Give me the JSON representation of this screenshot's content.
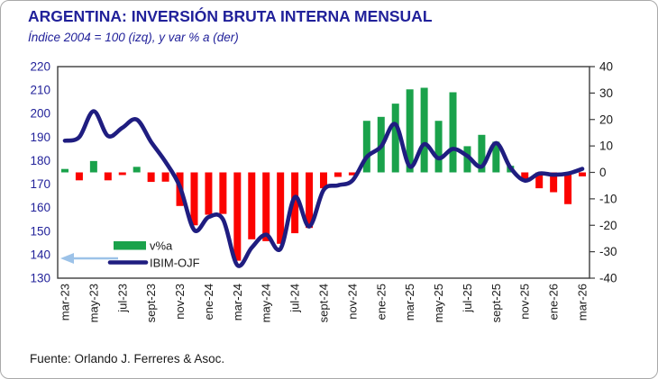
{
  "header": {
    "title": "ARGENTINA: INVERSIÓN BRUTA INTERNA MENSUAL",
    "subtitle": "Índice 2004 = 100 (izq), y var % a (der)"
  },
  "footer": {
    "source": "Fuente: Orlando J. Ferreres & Asoc."
  },
  "legend": {
    "bars_label": "v%a",
    "line_label": "IBIM-OJF",
    "position": "inside-bottom-left"
  },
  "colors": {
    "title_navy": "#21219a",
    "line_navy": "#1f1d80",
    "bar_positive_green": "#1aa24b",
    "bar_negative_red": "#fb0300",
    "axis_text_black": "#1a1a1a",
    "axis_text_navy": "#22229a",
    "plot_border": "#3c3c3c",
    "arrow_light_blue": "#9cc2e8"
  },
  "chart_data": {
    "type": "bar",
    "subtype": "combo-bar-line",
    "n_months": 37,
    "x_tick_labels": [
      "mar-23",
      "may-23",
      "jul-23",
      "sept-23",
      "nov-23",
      "ene-24",
      "mar-24",
      "may-24",
      "jul-24",
      "sept-24",
      "nov-24",
      "ene-25",
      "mar-25",
      "may-25",
      "jul-25",
      "sept-25",
      "nov-25",
      "ene-26",
      "mar-26"
    ],
    "x_tick_every": 2,
    "left_axis": {
      "min": 130,
      "max": 220,
      "step": 10,
      "ticks": [
        220,
        210,
        200,
        190,
        180,
        170,
        160,
        150,
        140,
        130
      ],
      "label": "Índice 2004 = 100"
    },
    "right_axis": {
      "min": -40,
      "max": 40,
      "step": 10,
      "ticks": [
        40,
        30,
        20,
        10,
        0,
        -10,
        -20,
        -30,
        -40
      ],
      "label": "var % a"
    },
    "grid": false,
    "series": [
      {
        "name": "v%a",
        "type": "bar",
        "axis": "right",
        "values": [
          1.3,
          -3,
          4.3,
          -3,
          -1,
          2.1,
          -3.6,
          -3.5,
          -12.7,
          -20,
          -16,
          -15.7,
          -33.4,
          -25.3,
          -26,
          -27,
          -23,
          -21,
          -6,
          -1.7,
          -1.1,
          19.5,
          21,
          26,
          31.4,
          32,
          19.5,
          30.3,
          9.9,
          14.2,
          11.6,
          2.5,
          -3,
          -6,
          -7.5,
          -12,
          -1.5
        ]
      },
      {
        "name": "IBIM-OJF",
        "type": "line",
        "axis": "left",
        "smooth": true,
        "values": [
          188.5,
          190,
          201,
          190.5,
          194,
          197.5,
          188,
          179.5,
          169,
          150.5,
          156,
          155,
          135.5,
          143,
          148.5,
          142.5,
          164.5,
          152,
          167.5,
          169.5,
          171.5,
          181.5,
          186,
          195.5,
          177.5,
          187,
          181,
          185,
          182,
          177.5,
          187.5,
          177,
          171.5,
          174.5,
          174,
          174.5,
          176.5
        ]
      }
    ]
  }
}
